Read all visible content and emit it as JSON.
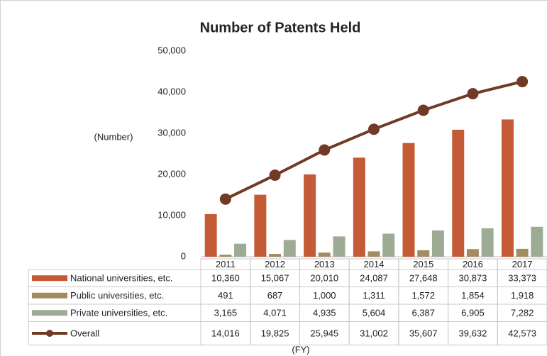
{
  "chart_data": {
    "type": "bar+line",
    "title": "Number of Patents Held",
    "y_label": "(Number)",
    "x_label": "(FY)",
    "categories": [
      "2011",
      "2012",
      "2013",
      "2014",
      "2015",
      "2016",
      "2017"
    ],
    "ylim": [
      0,
      50000
    ],
    "yticks": [
      0,
      {
        "value": 10000,
        "label": "10,000"
      },
      {
        "value": 20000,
        "label": "20,000"
      },
      {
        "value": 30000,
        "label": "30,000"
      },
      {
        "value": 40000,
        "label": "40,000"
      },
      {
        "value": 50000,
        "label": "50,000"
      }
    ],
    "grid": false,
    "series": [
      {
        "name": "National universities, etc.",
        "type": "bar",
        "color": "#c55a37",
        "values": [
          10360,
          15067,
          20010,
          24087,
          27648,
          30873,
          33373
        ],
        "value_labels": [
          "10,360",
          "15,067",
          "20,010",
          "24,087",
          "27,648",
          "30,873",
          "33,373"
        ]
      },
      {
        "name": "Public universities, etc.",
        "type": "bar",
        "color": "#a38d60",
        "values": [
          491,
          687,
          1000,
          1311,
          1572,
          1854,
          1918
        ],
        "value_labels": [
          "491",
          "687",
          "1,000",
          "1,311",
          "1,572",
          "1,854",
          "1,918"
        ]
      },
      {
        "name": "Private universities, etc.",
        "type": "bar",
        "color": "#9dab94",
        "values": [
          3165,
          4071,
          4935,
          5604,
          6387,
          6905,
          7282
        ],
        "value_labels": [
          "3,165",
          "4,071",
          "4,935",
          "5,604",
          "6,387",
          "6,905",
          "7,282"
        ]
      },
      {
        "name": "Overall",
        "type": "line",
        "color": "#713a24",
        "values": [
          14016,
          19825,
          25945,
          31002,
          35607,
          39632,
          42573
        ],
        "value_labels": [
          "14,016",
          "19,825",
          "25,945",
          "31,002",
          "35,607",
          "39,632",
          "42,573"
        ]
      }
    ]
  }
}
